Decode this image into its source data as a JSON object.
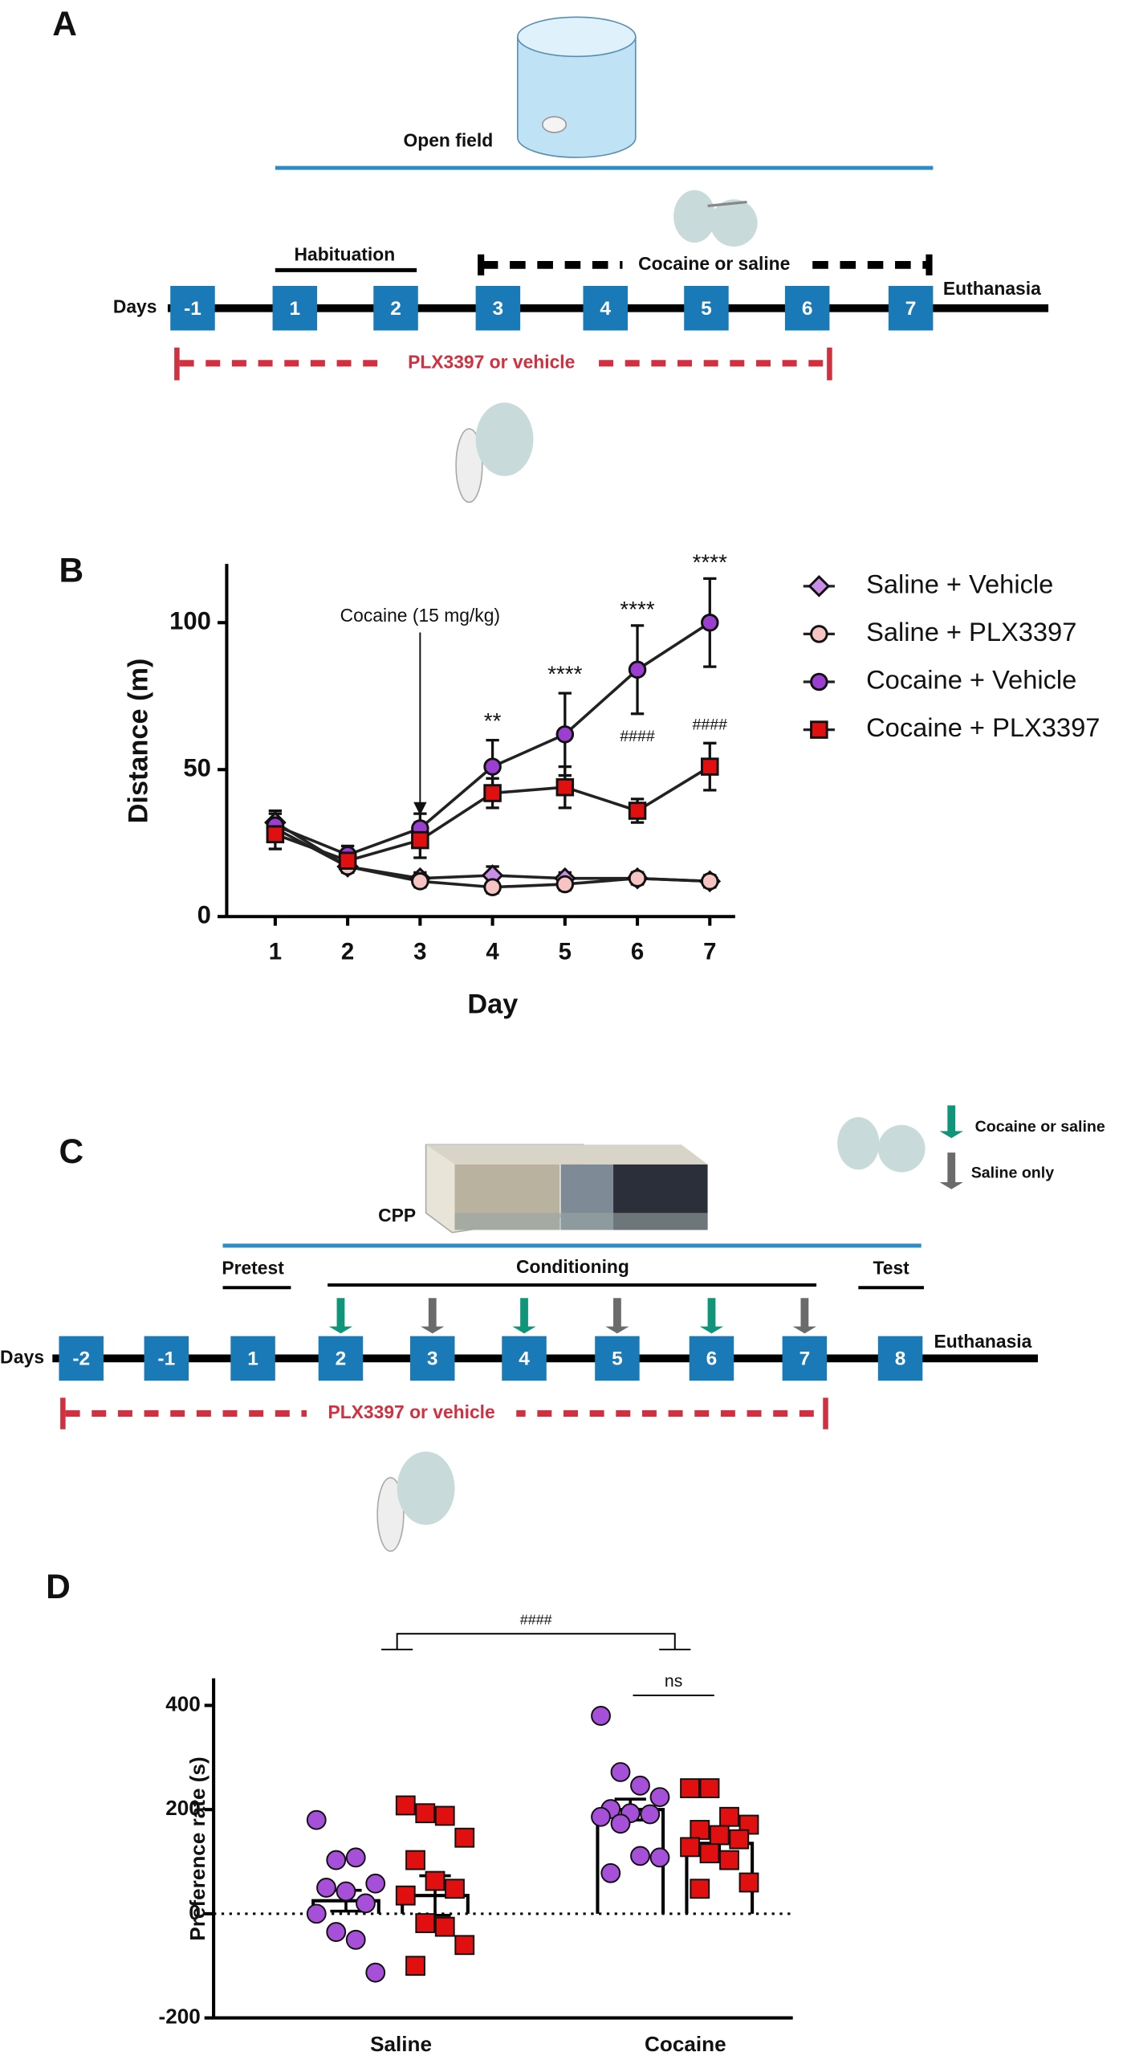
{
  "panel_a": {
    "label": "A",
    "apparatus": "Open field",
    "phase": "Habituation",
    "treatment": "Cocaine or saline",
    "days_label": "Days",
    "days": [
      "-1",
      "1",
      "2",
      "3",
      "4",
      "5",
      "6",
      "7"
    ],
    "end": "Euthanasia",
    "drug": "PLX3397 or vehicle"
  },
  "panel_c": {
    "label": "C",
    "apparatus": "CPP",
    "phases": [
      "Pretest",
      "Conditioning",
      "Test"
    ],
    "days_label": "Days",
    "days": [
      "-2",
      "-1",
      "1",
      "2",
      "3",
      "4",
      "5",
      "6",
      "7",
      "8"
    ],
    "end": "Euthanasia",
    "drug": "PLX3397 or vehicle",
    "arrow_legend": [
      "Cocaine or saline",
      "Saline only"
    ]
  },
  "chart_data": [
    {
      "type": "line",
      "panel": "B",
      "x_label": "Day",
      "y_label": "Distance (m)",
      "x": [
        1,
        2,
        3,
        4,
        5,
        6,
        7
      ],
      "xlim": [
        0.33,
        7.35
      ],
      "xticks": [
        1,
        2,
        3,
        4,
        5,
        6,
        7
      ],
      "ylim": [
        0,
        120
      ],
      "yticks": [
        0,
        50,
        100
      ],
      "legend": "right",
      "series": [
        {
          "name": "Saline + Vehicle",
          "color": "#c98ee6",
          "marker": "diamond",
          "values": [
            32,
            17,
            13,
            14,
            13,
            13,
            12
          ],
          "errors": [
            3,
            2,
            2,
            3,
            2,
            2,
            2
          ]
        },
        {
          "name": "Saline + PLX3397",
          "color": "#f7c4c4",
          "marker": "circle",
          "values": [
            30,
            17,
            12,
            10,
            11,
            13,
            12
          ],
          "errors": [
            3,
            2,
            2,
            2,
            2,
            2,
            2
          ]
        },
        {
          "name": "Cocaine + Vehicle",
          "color": "#9b3fd0",
          "marker": "circle",
          "values": [
            31,
            21,
            30,
            51,
            62,
            84,
            100
          ],
          "errors": [
            5,
            3,
            5,
            9,
            14,
            15,
            15
          ]
        },
        {
          "name": "Cocaine + PLX3397",
          "color": "#e01010",
          "marker": "square",
          "values": [
            28,
            19,
            26,
            42,
            44,
            36,
            51
          ],
          "errors": [
            5,
            3,
            6,
            5,
            7,
            4,
            8
          ]
        }
      ],
      "annotations": [
        {
          "text": "Cocaine (15 mg/kg)",
          "x": 3,
          "y": 102
        },
        {
          "text": "**",
          "x": 4,
          "y": 66
        },
        {
          "text": "****",
          "x": 5,
          "y": 82
        },
        {
          "text": "****",
          "x": 6,
          "y": 104
        },
        {
          "text": "****",
          "x": 7,
          "y": 120
        },
        {
          "text": "####",
          "x": 6,
          "y": 61
        },
        {
          "text": "####",
          "x": 7,
          "y": 65
        }
      ]
    },
    {
      "type": "bar-scatter",
      "panel": "D",
      "y_label": "Preference rate (s)",
      "categories": [
        "Saline",
        "Cocaine"
      ],
      "ylim": [
        -200,
        452
      ],
      "yticks": [
        -200,
        0,
        200,
        400
      ],
      "series": [
        {
          "color": "#a64fd8",
          "marker": "circle",
          "values": [
            25,
            200
          ],
          "errors": [
            20,
            20
          ],
          "points": [
            [
              180,
              103,
              108,
              58,
              50,
              43,
              20,
              0,
              -35,
              -50,
              -113
            ],
            [
              380,
              272,
              246,
              224,
              201,
              193,
              191,
              186,
              173,
              111,
              108,
              78
            ]
          ]
        },
        {
          "color": "#e01010",
          "marker": "square",
          "values": [
            35,
            135
          ],
          "errors": [
            38,
            20
          ],
          "points": [
            [
              208,
              193,
              188,
              146,
              103,
              63,
              48,
              35,
              -18,
              -25,
              -60,
              -100
            ],
            [
              241,
              241,
              186,
              171,
              161,
              151,
              143,
              128,
              116,
              103,
              60,
              48
            ]
          ]
        }
      ],
      "comparisons": [
        "####",
        "ns"
      ]
    }
  ]
}
